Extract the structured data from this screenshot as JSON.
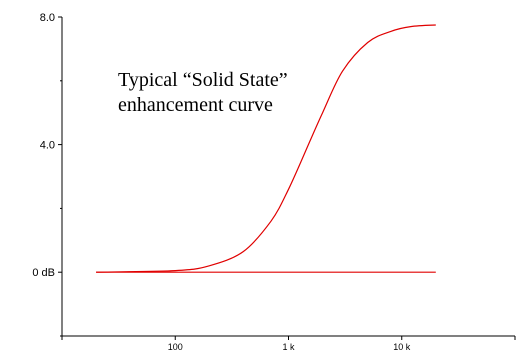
{
  "chart_data": {
    "type": "line",
    "title": "",
    "xlabel": "",
    "ylabel": "",
    "x_scale": "log",
    "xlim": [
      10,
      100000
    ],
    "ylim": [
      -2,
      8
    ],
    "grid": false,
    "y_ticks": [
      {
        "value": 8,
        "label": "8.0"
      },
      {
        "value": 4,
        "label": "4.0"
      },
      {
        "value": 0,
        "label": "0 dB"
      }
    ],
    "x_ticks": [
      {
        "value": 100,
        "label": "100"
      },
      {
        "value": 1000,
        "label": "1 k"
      },
      {
        "value": 10000,
        "label": "10 k"
      }
    ],
    "annotation": {
      "lines": [
        "Typical “Solid State”",
        "enhancement curve"
      ]
    },
    "series": [
      {
        "color": "#e00000",
        "x": [
          20,
          100,
          200,
          400,
          700,
          1000,
          1500,
          2000,
          3000,
          5000,
          8000,
          12000,
          20000
        ],
        "y": [
          0,
          0.05,
          0.2,
          0.65,
          1.6,
          2.6,
          4.0,
          5.0,
          6.3,
          7.2,
          7.55,
          7.7,
          7.75
        ]
      },
      {
        "color": "#e00000",
        "x": [
          20,
          20000
        ],
        "y": [
          0,
          0
        ]
      }
    ]
  }
}
